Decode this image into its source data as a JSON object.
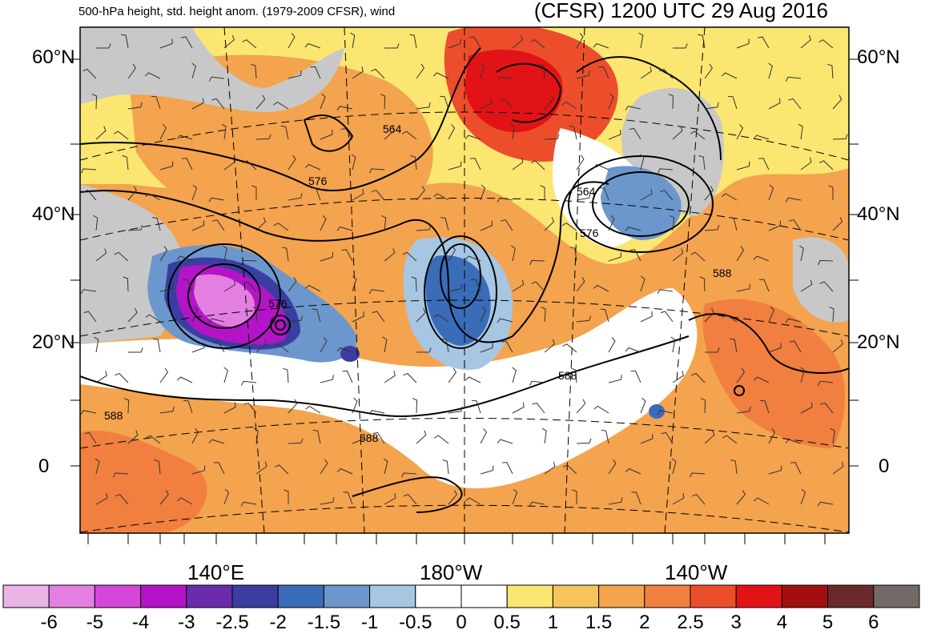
{
  "header": {
    "left_title": "500-hPa height, std. height anom. (1979-2009 CFSR), wind",
    "right_title": "(CFSR) 1200 UTC 29 Aug 2016"
  },
  "map": {
    "lat_labels_left": [
      "60°N",
      "40°N",
      "20°N",
      "0"
    ],
    "lat_labels_right": [
      "60°N",
      "40°N",
      "20°N",
      "0"
    ],
    "lon_labels": [
      "140°E",
      "180°W",
      "140°W"
    ],
    "height_contour_labels": [
      "564",
      "576",
      "564",
      "576",
      "576",
      "588",
      "588",
      "588",
      "588"
    ]
  },
  "colorbar": {
    "labels": [
      "-6",
      "-5",
      "-4",
      "-3",
      "-2.5",
      "-2",
      "-1.5",
      "-1",
      "-0.5",
      "0",
      "0.5",
      "1",
      "1.5",
      "2",
      "2.5",
      "3",
      "4",
      "5",
      "6"
    ],
    "colors": [
      "#e9b5e6",
      "#e37fe0",
      "#d447d9",
      "#b414c8",
      "#6a2cac",
      "#3b3ea0",
      "#3a6cb8",
      "#6b97cc",
      "#a6c6e2",
      "#ffffff",
      "#ffffff",
      "#fbe671",
      "#f5c55c",
      "#f4a34e",
      "#f07f40",
      "#ec4e2c",
      "#e21317",
      "#a30f0f",
      "#6b2a2a",
      "#736a67"
    ]
  }
}
